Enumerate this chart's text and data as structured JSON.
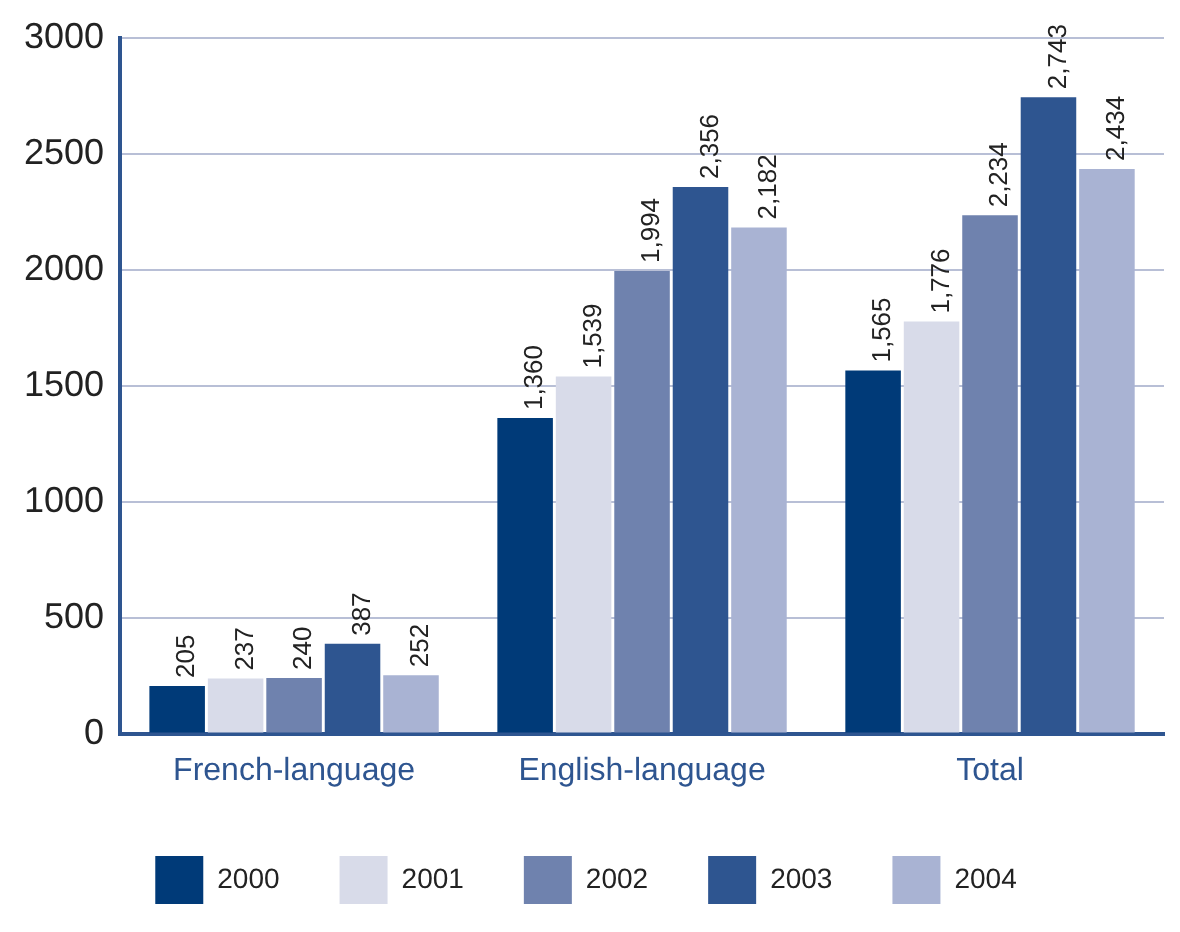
{
  "chart_data": {
    "type": "bar",
    "categories": [
      "French-language",
      "English-language",
      "Total"
    ],
    "series": [
      {
        "name": "2000",
        "color": "#003a78",
        "values": [
          205,
          1360,
          1565
        ],
        "value_labels": [
          "205",
          "1,360",
          "1,565"
        ]
      },
      {
        "name": "2001",
        "color": "#d8dbe9",
        "values": [
          237,
          1539,
          1776
        ],
        "value_labels": [
          "237",
          "1,539",
          "1,776"
        ]
      },
      {
        "name": "2002",
        "color": "#6f82ae",
        "values": [
          240,
          1994,
          2234
        ],
        "value_labels": [
          "240",
          "1,994",
          "2,234"
        ]
      },
      {
        "name": "2003",
        "color": "#2e5590",
        "values": [
          387,
          2356,
          2743
        ],
        "value_labels": [
          "387",
          "2,356",
          "2,743"
        ]
      },
      {
        "name": "2004",
        "color": "#a9b3d3",
        "values": [
          252,
          2182,
          2434
        ],
        "value_labels": [
          "252",
          "2,182",
          "2,434"
        ]
      }
    ],
    "ylim": [
      0,
      3000
    ],
    "yticks": [
      0,
      500,
      1000,
      1500,
      2000,
      2500,
      3000
    ],
    "grid": "y",
    "legend": "bottom"
  }
}
